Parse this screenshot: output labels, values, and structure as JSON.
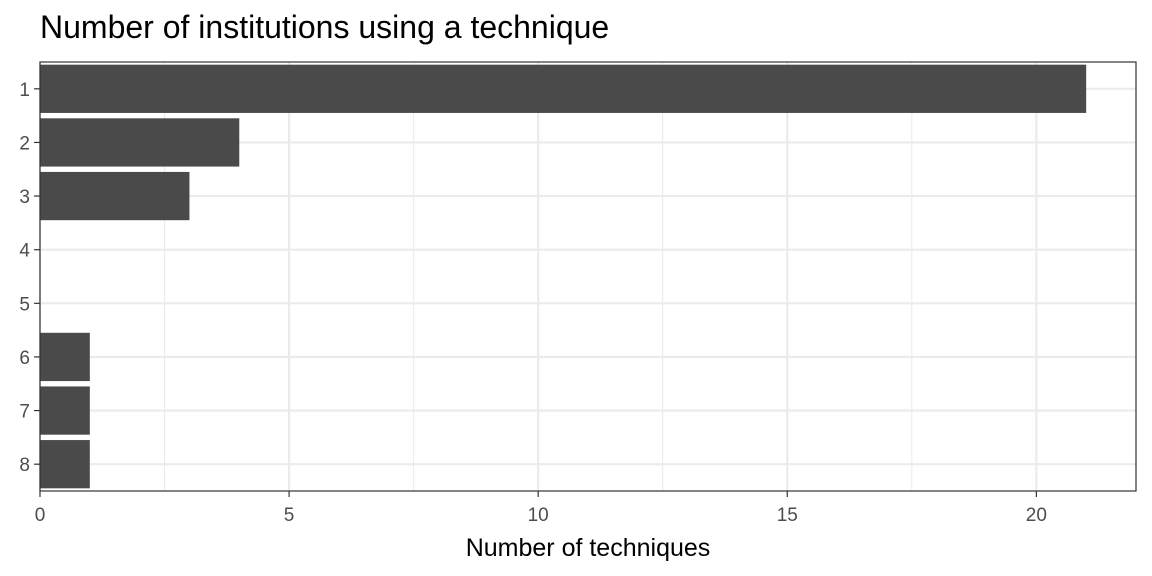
{
  "chart_data": {
    "type": "bar",
    "orientation": "horizontal",
    "title": "Number of institutions using a technique",
    "xlabel": "Number of techniques",
    "ylabel": "",
    "categories": [
      "1",
      "2",
      "3",
      "4",
      "5",
      "6",
      "7",
      "8"
    ],
    "values": [
      21,
      4,
      3,
      0,
      0,
      1,
      1,
      1
    ],
    "xlim": [
      0,
      22
    ],
    "x_ticks": [
      0,
      5,
      10,
      15,
      20
    ],
    "grid": true,
    "bar_color": "#4a4a4a"
  }
}
